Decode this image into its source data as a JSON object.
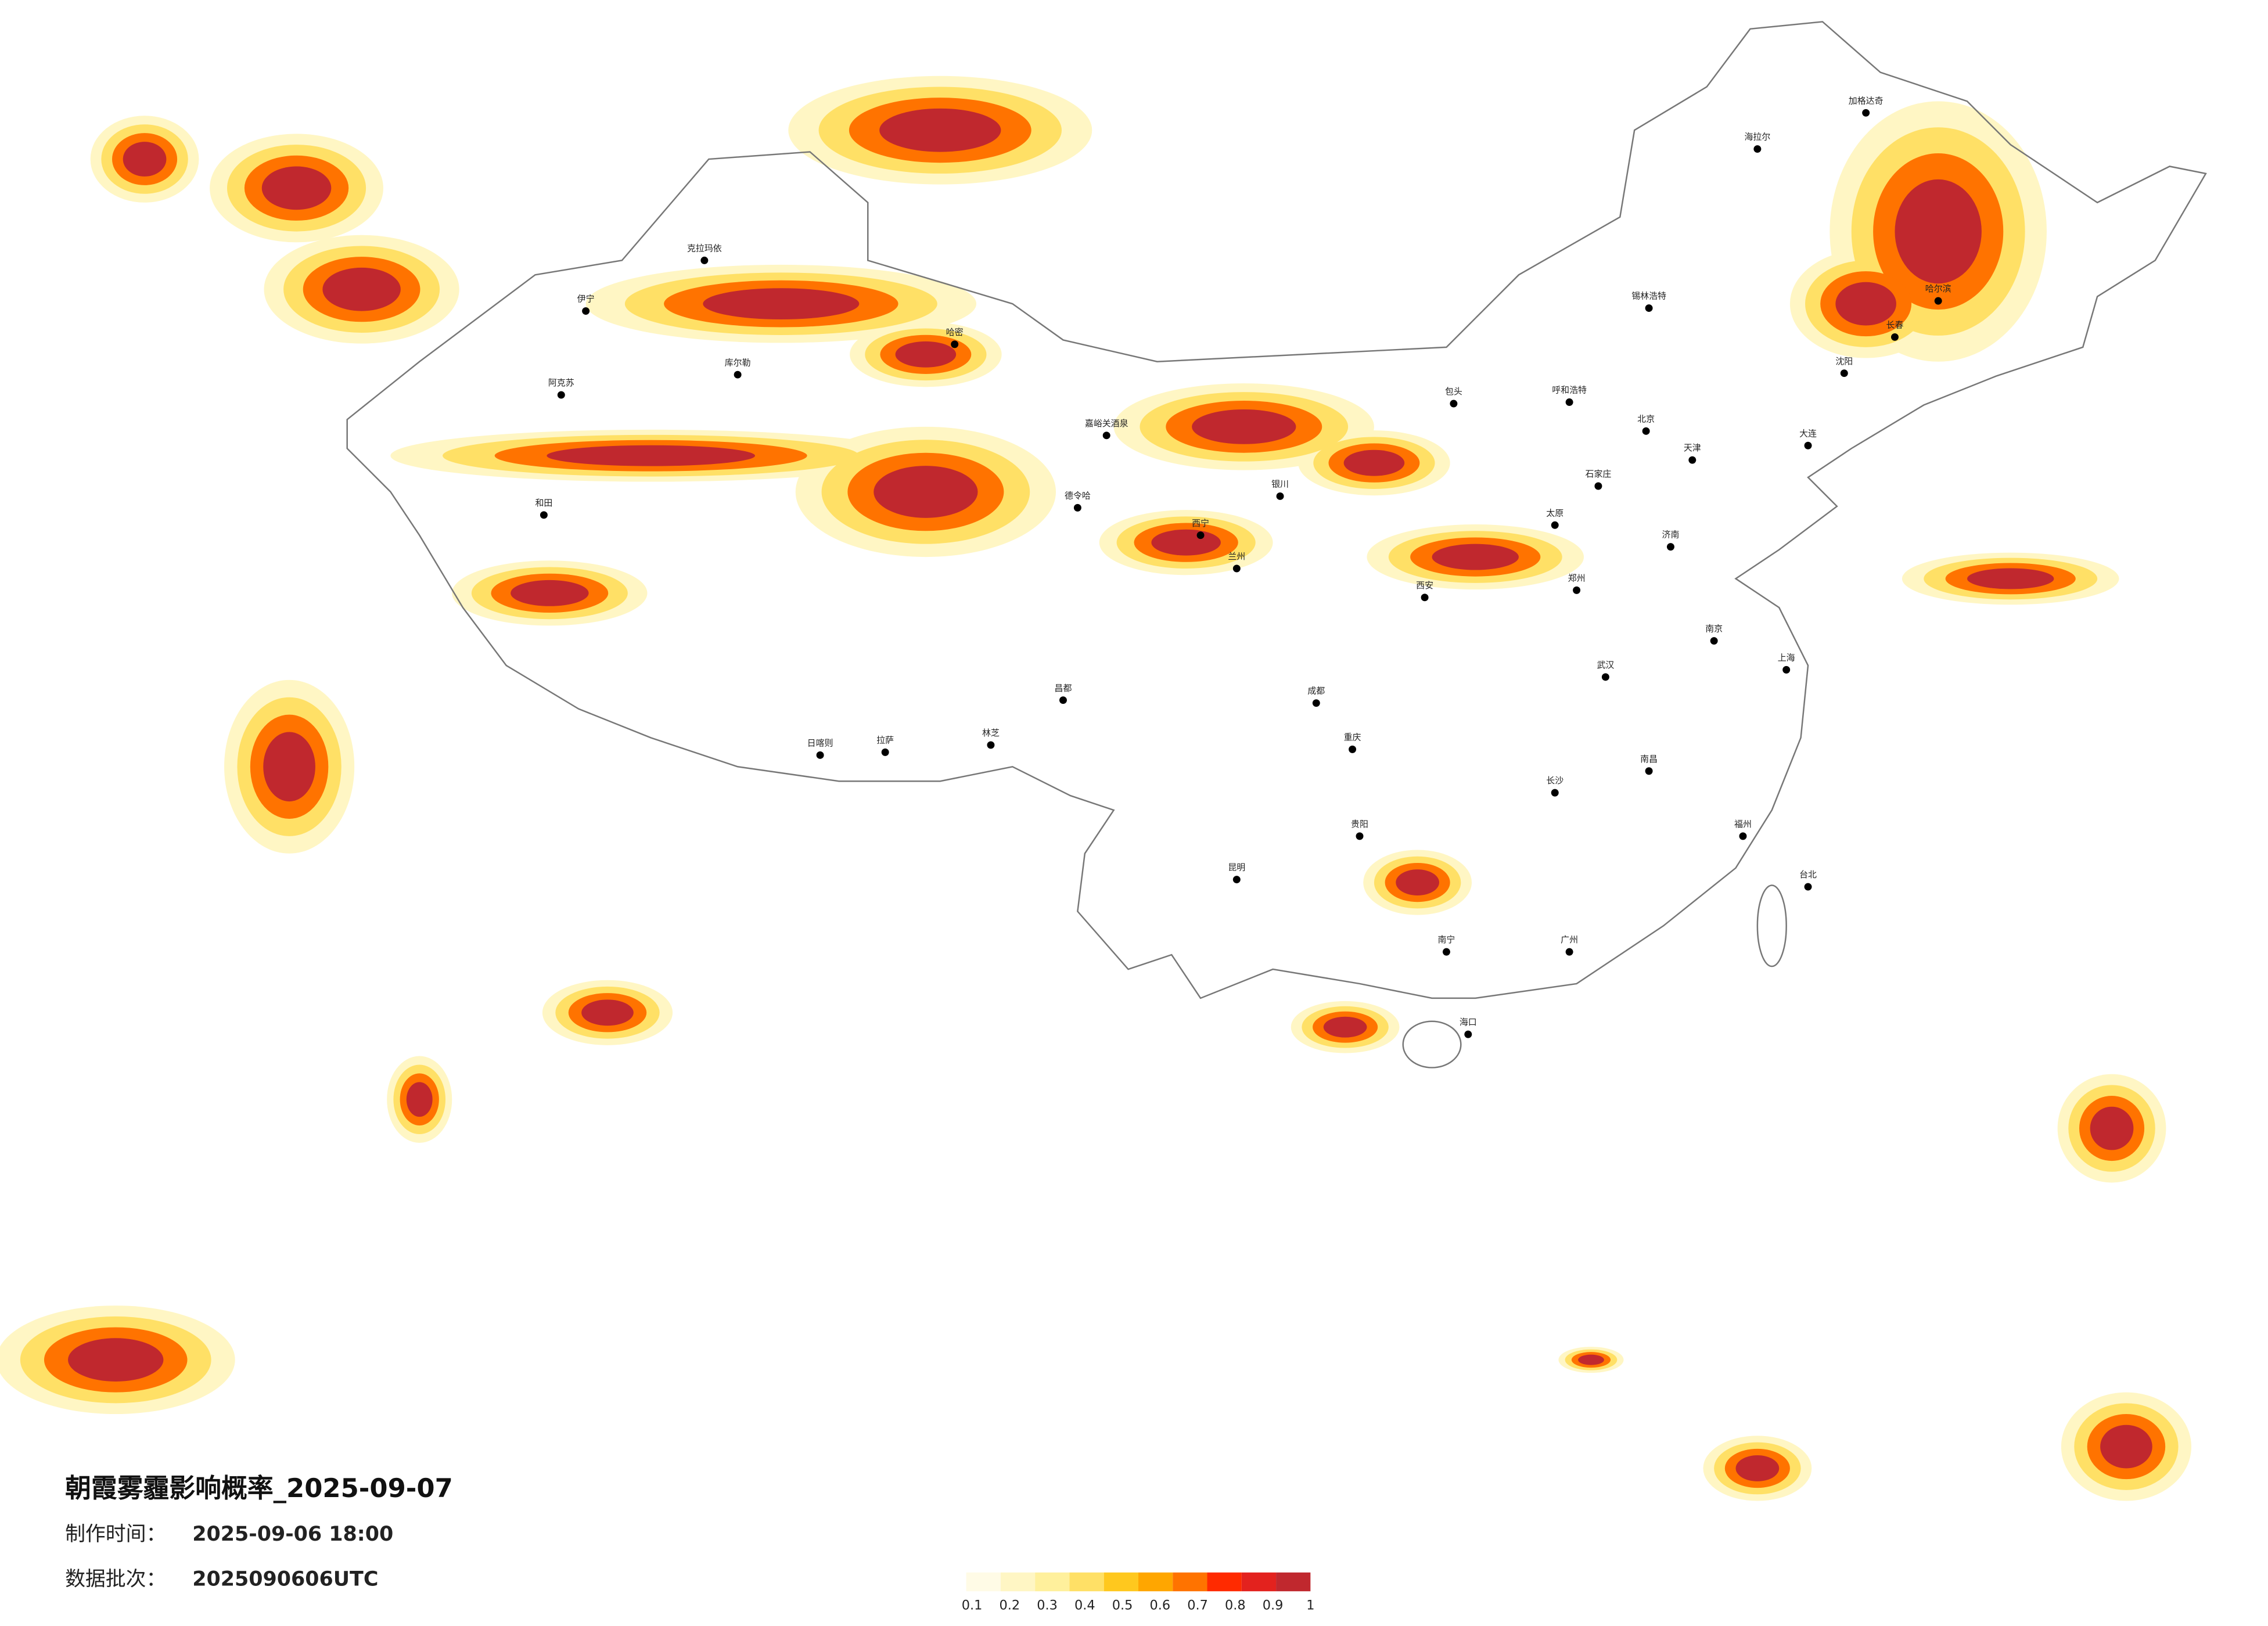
{
  "title": "朝霞雾霾影响概率_2025-09-07",
  "made_time": {
    "label": "制作时间：",
    "value": "2025-09-06 18:00"
  },
  "data_batch": {
    "label": "数据批次：",
    "value": "2025090606UTC"
  },
  "legend": {
    "ticks": [
      0.1,
      0.2,
      0.3,
      0.4,
      0.5,
      0.6,
      0.7,
      0.8,
      0.9,
      1
    ],
    "colors": [
      "#fffbe6",
      "#fff6c4",
      "#fff09c",
      "#ffe066",
      "#ffc81e",
      "#ffa600",
      "#ff7300",
      "#ff2a00",
      "#e3221e",
      "#c0282e"
    ]
  },
  "cities": [
    "克拉玛依",
    "伊宁",
    "阿克苏",
    "库尔勒",
    "哈密",
    "和田",
    "嘉峪关酒泉",
    "德令哈",
    "拉萨",
    "日喀则",
    "林芝",
    "昌都",
    "西宁",
    "兰州",
    "银川",
    "呼和浩特",
    "包头",
    "北京",
    "天津",
    "石家庄",
    "太原",
    "济南",
    "郑州",
    "西安",
    "成都",
    "重庆",
    "武汉",
    "南京",
    "上海",
    "长沙",
    "南昌",
    "福州",
    "台北",
    "广州",
    "南宁",
    "海口",
    "昆明",
    "贵阳",
    "哈尔滨",
    "长春",
    "沈阳",
    "大连",
    "锡林浩特",
    "海拉尔",
    "加格达奇"
  ]
}
